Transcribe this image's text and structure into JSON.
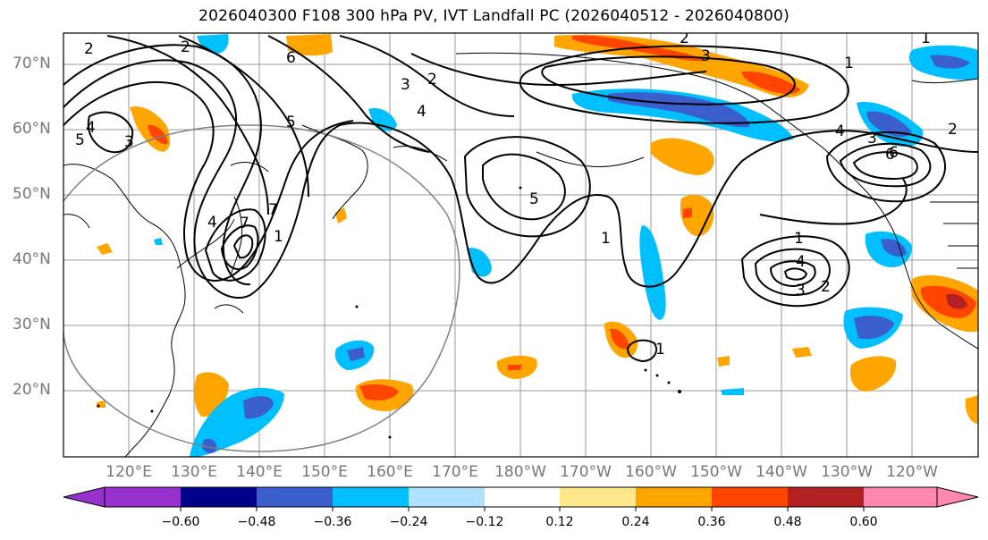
{
  "title": "2026040300 F108 300 hPa PV, IVT Landfall PC (2026040512 - 2026040800)",
  "map": {
    "lat_labels": [
      "70°N",
      "60°N",
      "50°N",
      "40°N",
      "30°N",
      "20°N"
    ],
    "lon_labels": [
      "120°E",
      "130°E",
      "140°E",
      "150°E",
      "160°E",
      "170°E",
      "180°W",
      "170°W",
      "160°W",
      "150°W",
      "140°W",
      "130°W",
      "120°W"
    ],
    "contour_labels": [
      "2",
      "2",
      "3",
      "2",
      "4",
      "5",
      "3",
      "6",
      "7",
      "1",
      "5",
      "1",
      "1",
      "4",
      "6",
      "3",
      "2",
      "1",
      "4",
      "3",
      "2",
      "1",
      "2",
      "4",
      "5",
      "6",
      "1",
      "3",
      "4",
      "7"
    ]
  },
  "colorbar": {
    "ticks": [
      "−0.60",
      "−0.48",
      "−0.36",
      "−0.24",
      "−0.12",
      "0.12",
      "0.24",
      "0.36",
      "0.48",
      "0.60"
    ],
    "colors": [
      "#9932cc",
      "#00008b",
      "#3a5fcd",
      "#00bfff",
      "#b0e2ff",
      "#ffffff",
      "#ffe78c",
      "#ffa500",
      "#ff4500",
      "#b22222",
      "#ff88b0"
    ]
  }
}
